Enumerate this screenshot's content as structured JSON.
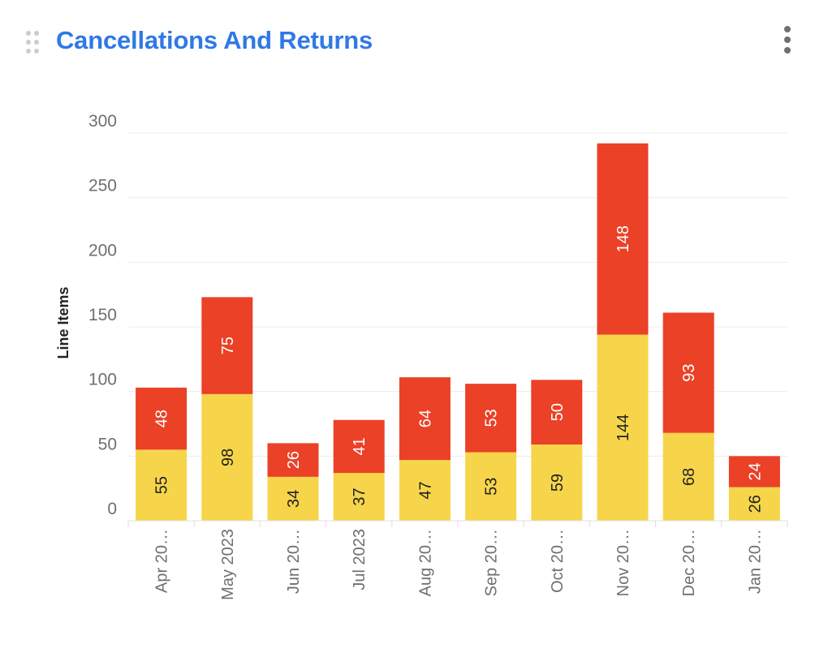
{
  "header": {
    "title": "Cancellations And Returns"
  },
  "icons": {
    "drag": "drag-handle-icon",
    "menu": "more-vertical-icon"
  },
  "colors": {
    "title": "#2f79e6",
    "series_bottom": "#f7d54a",
    "series_top": "#ea4127",
    "gridline": "#ececec",
    "axis_text": "#6f6f6f"
  },
  "chart_data": {
    "type": "bar",
    "stacked": true,
    "categories": [
      "Apr 20…",
      "May 2023",
      "Jun 20…",
      "Jul 2023",
      "Aug 20…",
      "Sep 20…",
      "Oct 20…",
      "Nov 20…",
      "Dec 20…",
      "Jan 20…"
    ],
    "series": [
      {
        "values": [
          55,
          98,
          34,
          37,
          47,
          53,
          59,
          144,
          68,
          26
        ]
      },
      {
        "values": [
          48,
          75,
          26,
          41,
          64,
          53,
          50,
          148,
          93,
          24
        ]
      }
    ],
    "ylabel": "Line Items",
    "ylim": [
      0,
      300
    ],
    "yticks": [
      0,
      50,
      100,
      150,
      200,
      250,
      300
    ],
    "grid": true,
    "legend": "none"
  }
}
